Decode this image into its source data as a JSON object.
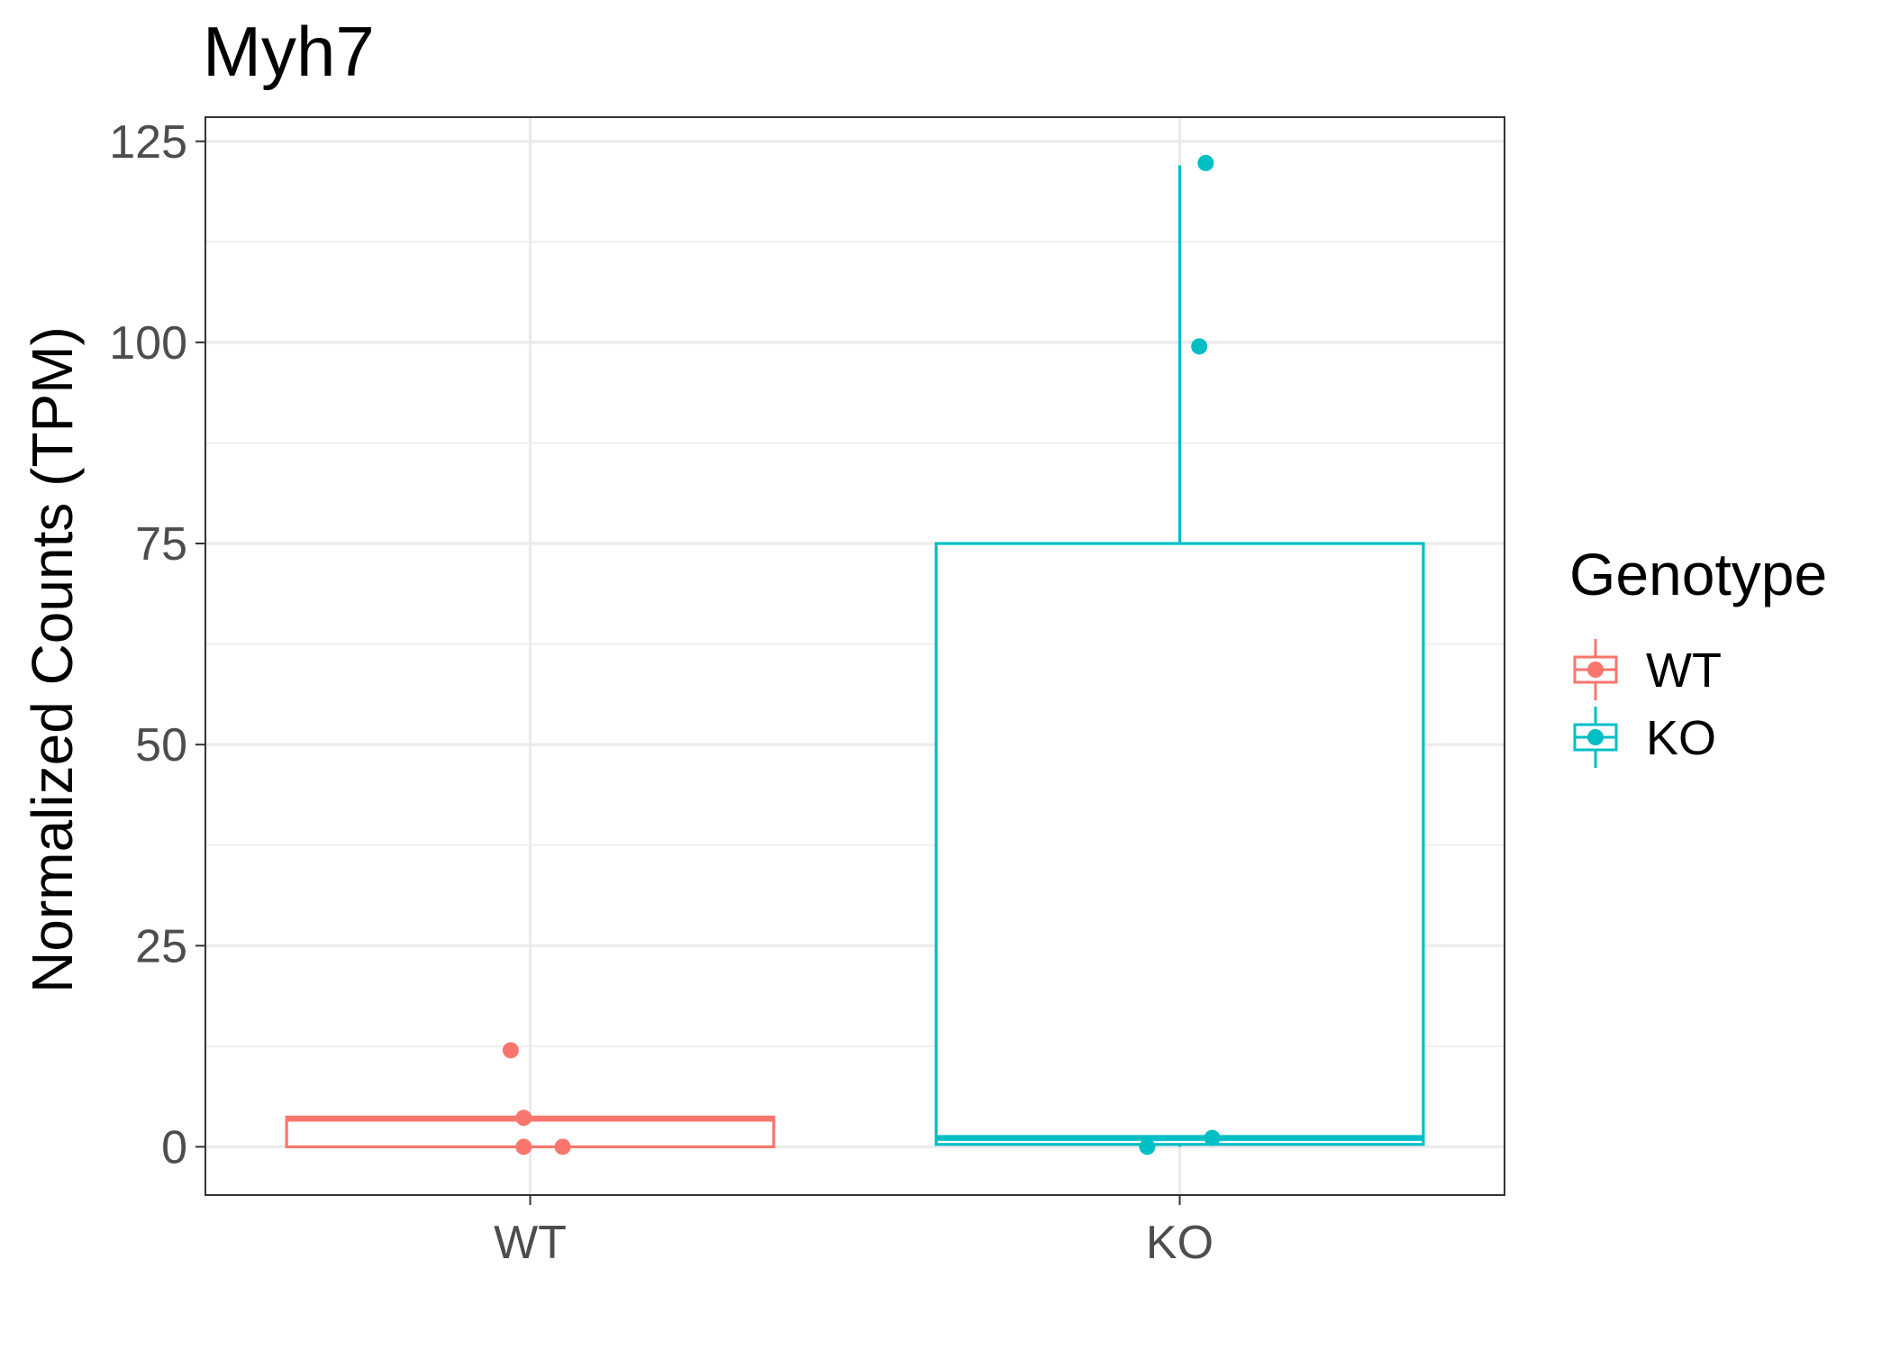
{
  "chart_data": {
    "type": "boxplot",
    "title": "Myh7",
    "xlabel": "",
    "ylabel": "Normalized Counts (TPM)",
    "ylim": [
      -6,
      128
    ],
    "yticks": [
      0,
      25,
      50,
      75,
      100,
      125
    ],
    "categories": [
      "WT",
      "KO"
    ],
    "grid": true,
    "legend": {
      "title": "Genotype",
      "placement": "right",
      "entries": [
        "WT",
        "KO"
      ]
    },
    "series": [
      {
        "name": "WT",
        "color": "#F8766D",
        "box": {
          "min": 0,
          "q1": 0,
          "median": 3.5,
          "q3": 3.7,
          "max": 3.7
        },
        "points": [
          {
            "x": -0.03,
            "y": 12
          },
          {
            "x": -0.01,
            "y": 3.6
          },
          {
            "x": -0.01,
            "y": 0
          },
          {
            "x": 0.05,
            "y": 0
          }
        ]
      },
      {
        "name": "KO",
        "color": "#00BFC4",
        "box": {
          "min": 0,
          "q1": 0.3,
          "median": 1.1,
          "q3": 75,
          "max": 122
        },
        "points": [
          {
            "x": 0.04,
            "y": 122.3
          },
          {
            "x": 0.03,
            "y": 99.5
          },
          {
            "x": 0.05,
            "y": 1.1
          },
          {
            "x": -0.05,
            "y": 0
          }
        ]
      }
    ]
  }
}
